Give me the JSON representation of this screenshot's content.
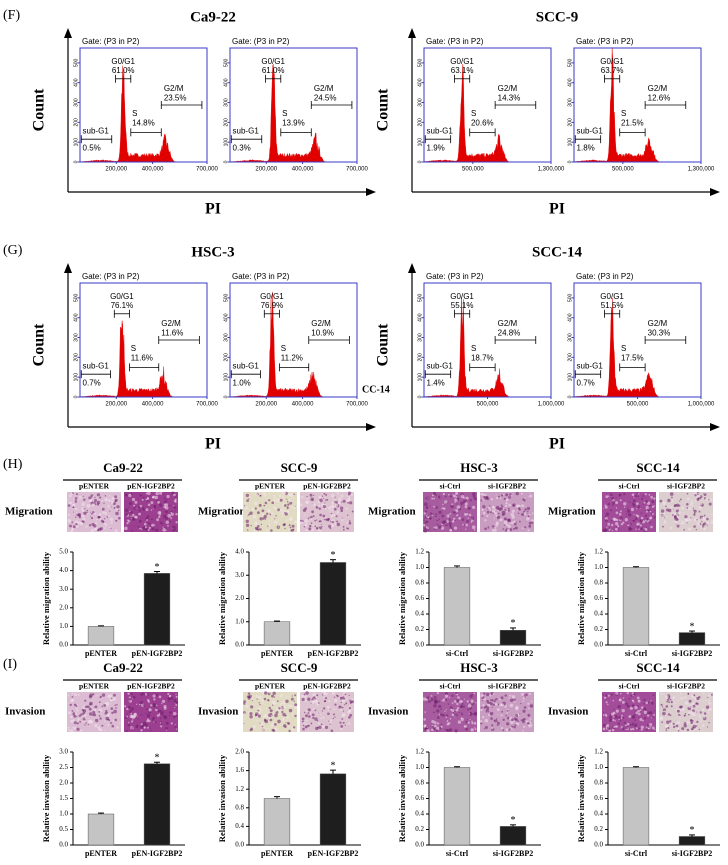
{
  "figure": {
    "flow_panels": [
      {
        "label": "(F)",
        "ylabel": "Count",
        "xlabel": "PI",
        "groups": [
          {
            "title": "Ca9-22",
            "xlim": [
              0,
              700000
            ],
            "xticks": [
              {
                "value": 200000,
                "label": "200,000"
              },
              {
                "value": 400000,
                "label": "400,000"
              },
              {
                "value": 700000,
                "label": "700,000"
              }
            ],
            "yticks": [
              0,
              100,
              200,
              300,
              400,
              500
            ],
            "plots": [
              {
                "gate": "Gate: (P3 in P2)",
                "phases": [
                  {
                    "name": "sub-G1",
                    "percent": "0.5%"
                  },
                  {
                    "name": "G0/G1",
                    "percent": "61.0%"
                  },
                  {
                    "name": "S",
                    "percent": "14.8%"
                  },
                  {
                    "name": "G2/M",
                    "percent": "23.5%"
                  }
                ]
              },
              {
                "gate": "Gate: (P3 in P2)",
                "phases": [
                  {
                    "name": "sub-G1",
                    "percent": "0.3%"
                  },
                  {
                    "name": "G0/G1",
                    "percent": "61.0%"
                  },
                  {
                    "name": "S",
                    "percent": "13.9%"
                  },
                  {
                    "name": "G2/M",
                    "percent": "24.5%"
                  }
                ]
              }
            ]
          },
          {
            "title": "SCC-9",
            "xlim": [
              0,
              1300000
            ],
            "xticks": [
              {
                "value": 500000,
                "label": "500,000"
              },
              {
                "value": 1300000,
                "label": "1,300,000"
              }
            ],
            "yticks": [
              0,
              100,
              200,
              300,
              400,
              500
            ],
            "plots": [
              {
                "gate": "Gate: (P3 in P2)",
                "phases": [
                  {
                    "name": "sub-G1",
                    "percent": "1.9%"
                  },
                  {
                    "name": "G0/G1",
                    "percent": "63.1%"
                  },
                  {
                    "name": "S",
                    "percent": "20.6%"
                  },
                  {
                    "name": "G2/M",
                    "percent": "14.3%"
                  }
                ]
              },
              {
                "gate": "Gate: (P3 in P2)",
                "phases": [
                  {
                    "name": "sub-G1",
                    "percent": "1.8%"
                  },
                  {
                    "name": "G0/G1",
                    "percent": "63.7%"
                  },
                  {
                    "name": "S",
                    "percent": "21.5%"
                  },
                  {
                    "name": "G2/M",
                    "percent": "12.6%"
                  }
                ]
              }
            ]
          }
        ]
      },
      {
        "label": "(G)",
        "ylabel": "Count",
        "xlabel": "PI",
        "fragment": "CC-14",
        "groups": [
          {
            "title": "HSC-3",
            "xlim": [
              0,
              700000
            ],
            "xticks": [
              {
                "value": 200000,
                "label": "200,000"
              },
              {
                "value": 400000,
                "label": "400,000"
              },
              {
                "value": 700000,
                "label": "700,000"
              }
            ],
            "yticks": [
              0,
              100,
              200,
              300,
              400,
              500
            ],
            "plots": [
              {
                "gate": "Gate: (P3 in P2)",
                "phases": [
                  {
                    "name": "sub-G1",
                    "percent": "0.7%"
                  },
                  {
                    "name": "G0/G1",
                    "percent": "76.1%"
                  },
                  {
                    "name": "S",
                    "percent": "11.6%"
                  },
                  {
                    "name": "G2/M",
                    "percent": "11.6%"
                  }
                ]
              },
              {
                "gate": "Gate: (P3 in P2)",
                "phases": [
                  {
                    "name": "sub-G1",
                    "percent": "1.0%"
                  },
                  {
                    "name": "G0/G1",
                    "percent": "76.9%"
                  },
                  {
                    "name": "S",
                    "percent": "11.2%"
                  },
                  {
                    "name": "G2/M",
                    "percent": "10.9%"
                  }
                ]
              }
            ]
          },
          {
            "title": "SCC-14",
            "xlim": [
              0,
              1000000
            ],
            "xticks": [
              {
                "value": 500000,
                "label": "500,000"
              },
              {
                "value": 1000000,
                "label": "1,000,000"
              }
            ],
            "yticks": [
              0,
              100,
              200,
              300,
              400,
              500
            ],
            "plots": [
              {
                "gate": "Gate: (P3 in P2)",
                "phases": [
                  {
                    "name": "sub-G1",
                    "percent": "1.4%"
                  },
                  {
                    "name": "G0/G1",
                    "percent": "55.1%"
                  },
                  {
                    "name": "S",
                    "percent": "18.7%"
                  },
                  {
                    "name": "G2/M",
                    "percent": "24.8%"
                  }
                ]
              },
              {
                "gate": "Gate: (P3 in P2)",
                "phases": [
                  {
                    "name": "sub-G1",
                    "percent": "0.7%"
                  },
                  {
                    "name": "G0/G1",
                    "percent": "51.5%"
                  },
                  {
                    "name": "S",
                    "percent": "17.5%"
                  },
                  {
                    "name": "G2/M",
                    "percent": "30.3%"
                  }
                ]
              }
            ]
          }
        ]
      }
    ],
    "assay_panels": [
      {
        "label": "(H)",
        "image_label": "Migration"
      },
      {
        "label": "(I)",
        "image_label": "Invasion"
      }
    ]
  },
  "chart_data": [
    {
      "type": "bar",
      "title": "Ca9-22",
      "ylabel": "Relative migration ability",
      "categories": [
        "pENTER",
        "pEN-IGF2BP2"
      ],
      "values": [
        1.0,
        3.85
      ],
      "errors": [
        0.03,
        0.1
      ],
      "annotation": "*",
      "colors": [
        "#c4c4c4",
        "#1e1e1e"
      ],
      "ylim": [
        0,
        5
      ],
      "yticks": [
        {
          "value": 0,
          "label": "0.0"
        },
        {
          "value": 1,
          "label": "1.0"
        },
        {
          "value": 2,
          "label": "2.0"
        },
        {
          "value": 3,
          "label": "3.0"
        },
        {
          "value": 4,
          "label": "4.0"
        },
        {
          "value": 5,
          "label": "5.0"
        }
      ]
    },
    {
      "type": "bar",
      "title": "SCC-9",
      "ylabel": "Relative migration ability",
      "categories": [
        "pENTER",
        "pEN-IGF2BP2"
      ],
      "values": [
        1.0,
        3.55
      ],
      "errors": [
        0.03,
        0.12
      ],
      "annotation": "*",
      "colors": [
        "#c4c4c4",
        "#1e1e1e"
      ],
      "ylim": [
        0,
        4
      ],
      "yticks": [
        {
          "value": 0,
          "label": "0.0"
        },
        {
          "value": 1,
          "label": "1.0"
        },
        {
          "value": 2,
          "label": "2.0"
        },
        {
          "value": 3,
          "label": "3.0"
        },
        {
          "value": 4,
          "label": "4.0"
        }
      ]
    },
    {
      "type": "bar",
      "title": "HSC-3",
      "ylabel": "Relative migration ability",
      "categories": [
        "si-Ctrl",
        "si-IGF2BP2"
      ],
      "values": [
        1.0,
        0.19
      ],
      "errors": [
        0.02,
        0.03
      ],
      "annotation": "*",
      "colors": [
        "#c4c4c4",
        "#1e1e1e"
      ],
      "ylim": [
        0,
        1.2
      ],
      "yticks": [
        {
          "value": 0,
          "label": "0.0"
        },
        {
          "value": 0.2,
          "label": "0.2"
        },
        {
          "value": 0.4,
          "label": "0.4"
        },
        {
          "value": 0.6,
          "label": "0.6"
        },
        {
          "value": 0.8,
          "label": "0.8"
        },
        {
          "value": 1,
          "label": "1.0"
        },
        {
          "value": 1.2,
          "label": "1.2"
        }
      ]
    },
    {
      "type": "bar",
      "title": "SCC-14",
      "ylabel": "Relative migration ability",
      "categories": [
        "si-Ctrl",
        "si-IGF2BP2"
      ],
      "values": [
        1.0,
        0.16
      ],
      "errors": [
        0.01,
        0.02
      ],
      "annotation": "*",
      "colors": [
        "#c4c4c4",
        "#1e1e1e"
      ],
      "ylim": [
        0,
        1.2
      ],
      "yticks": [
        {
          "value": 0,
          "label": "0.0"
        },
        {
          "value": 0.2,
          "label": "0.2"
        },
        {
          "value": 0.4,
          "label": "0.4"
        },
        {
          "value": 0.6,
          "label": "0.6"
        },
        {
          "value": 0.8,
          "label": "0.8"
        },
        {
          "value": 1,
          "label": "1.0"
        },
        {
          "value": 1.2,
          "label": "1.2"
        }
      ]
    },
    {
      "type": "bar",
      "title": "Ca9-22",
      "ylabel": "Relative invasion ability",
      "categories": [
        "pENTER",
        "pEN-IGF2BP2"
      ],
      "values": [
        1.0,
        2.62
      ],
      "errors": [
        0.03,
        0.05
      ],
      "annotation": "*",
      "colors": [
        "#c4c4c4",
        "#1e1e1e"
      ],
      "ylim": [
        0,
        3
      ],
      "yticks": [
        {
          "value": 0,
          "label": "0.0"
        },
        {
          "value": 0.5,
          "label": "0.5"
        },
        {
          "value": 1,
          "label": "1.0"
        },
        {
          "value": 1.5,
          "label": "1.5"
        },
        {
          "value": 2,
          "label": "2.0"
        },
        {
          "value": 2.5,
          "label": "2.5"
        },
        {
          "value": 3,
          "label": "3.0"
        }
      ]
    },
    {
      "type": "bar",
      "title": "SCC-9",
      "ylabel": "Relative invasion ability",
      "categories": [
        "pENTER",
        "pEN-IGF2BP2"
      ],
      "values": [
        1.0,
        1.53
      ],
      "errors": [
        0.04,
        0.08
      ],
      "annotation": "*",
      "colors": [
        "#c4c4c4",
        "#1e1e1e"
      ],
      "ylim": [
        0,
        2
      ],
      "yticks": [
        {
          "value": 0,
          "label": "0.0"
        },
        {
          "value": 0.4,
          "label": "0.4"
        },
        {
          "value": 0.8,
          "label": "0.8"
        },
        {
          "value": 1.2,
          "label": "1.2"
        },
        {
          "value": 1.6,
          "label": "1.6"
        },
        {
          "value": 2,
          "label": "2.0"
        }
      ]
    },
    {
      "type": "bar",
      "title": "HSC-3",
      "ylabel": "Relative invasion ability",
      "categories": [
        "si-Ctrl",
        "si-IGF2BP2"
      ],
      "values": [
        1.0,
        0.24
      ],
      "errors": [
        0.01,
        0.02
      ],
      "annotation": "*",
      "colors": [
        "#c4c4c4",
        "#1e1e1e"
      ],
      "ylim": [
        0,
        1.2
      ],
      "yticks": [
        {
          "value": 0,
          "label": "0.0"
        },
        {
          "value": 0.2,
          "label": "0.2"
        },
        {
          "value": 0.4,
          "label": "0.4"
        },
        {
          "value": 0.6,
          "label": "0.6"
        },
        {
          "value": 0.8,
          "label": "0.8"
        },
        {
          "value": 1,
          "label": "1.0"
        },
        {
          "value": 1.2,
          "label": "1.2"
        }
      ]
    },
    {
      "type": "bar",
      "title": "SCC-14",
      "ylabel": "Relative invasion ability",
      "categories": [
        "si-Ctrl",
        "si-IGF2BP2"
      ],
      "values": [
        1.0,
        0.11
      ],
      "errors": [
        0.01,
        0.02
      ],
      "annotation": "*",
      "colors": [
        "#c4c4c4",
        "#1e1e1e"
      ],
      "ylim": [
        0,
        1.2
      ],
      "yticks": [
        {
          "value": 0,
          "label": "0.0"
        },
        {
          "value": 0.2,
          "label": "0.2"
        },
        {
          "value": 0.4,
          "label": "0.4"
        },
        {
          "value": 0.6,
          "label": "0.6"
        },
        {
          "value": 0.8,
          "label": "0.8"
        },
        {
          "value": 1,
          "label": "1.0"
        },
        {
          "value": 1.2,
          "label": "1.2"
        }
      ]
    }
  ]
}
